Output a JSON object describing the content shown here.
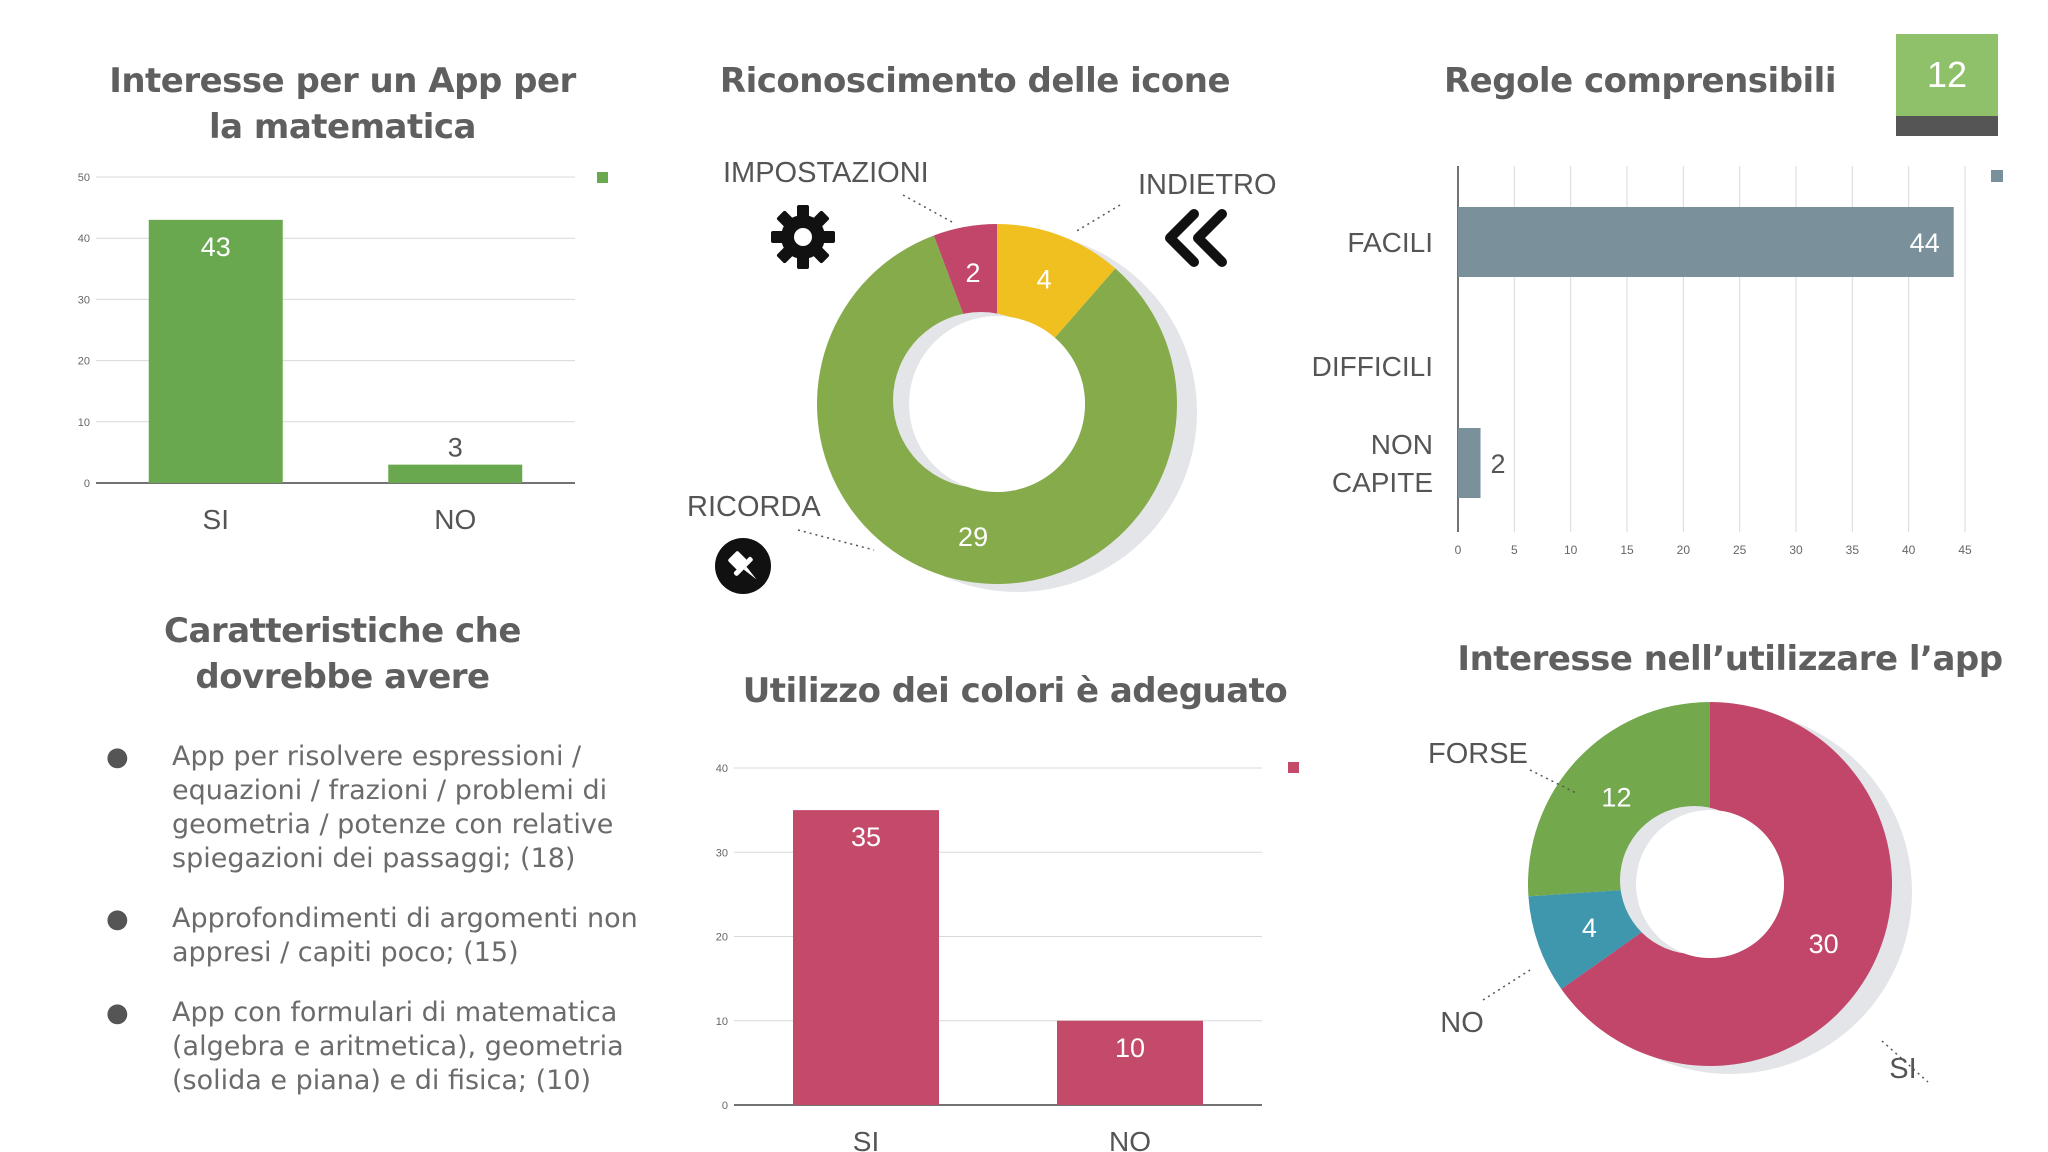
{
  "page_number": "12",
  "titles": {
    "chart1": "Interesse per un App per la matematica",
    "chart2": "Riconoscimento delle icone",
    "chart3": "Regole comprensibili",
    "features": "Caratteristiche che dovrebbe avere",
    "chart5": "Utilizzo dei colori è adeguato",
    "chart6": "Interesse nell’utilizzare l’app"
  },
  "features": [
    "App per risolvere espressioni / equazioni / frazioni / problemi di geometria / potenze  con relative spiegazioni dei passaggi; (18)",
    "Approfondimenti di argomenti non appresi / capiti poco; (15)",
    "App con formulari di matematica (algebra e aritmetica), geometria (solida e piana) e di fisica; (10)"
  ],
  "icons": {
    "settings": "gear-icon",
    "back": "double-chevron-left-icon",
    "pin": "pin-icon"
  },
  "chart_data": [
    {
      "type": "bar",
      "title": "Interesse per un App per la matematica",
      "categories": [
        "SI",
        "NO"
      ],
      "values": [
        43,
        3
      ],
      "ylim": [
        0,
        50
      ],
      "yticks": [
        0,
        10,
        20,
        30,
        40,
        50
      ],
      "color": "#6aa84f",
      "grid": true,
      "legend": "top-right"
    },
    {
      "type": "pie",
      "title": "Riconoscimento delle icone",
      "labels": [
        "IMPOSTAZIONI",
        "INDIETRO",
        "RICORDA"
      ],
      "values": [
        2,
        4,
        29
      ],
      "colors": [
        "#c2466a",
        "#f0c020",
        "#86ab4b"
      ],
      "donut": true
    },
    {
      "type": "bar",
      "orientation": "horizontal",
      "title": "Regole comprensibili",
      "categories": [
        "FACILI",
        "DIFFICILI",
        "NON CAPITE"
      ],
      "values": [
        44,
        0,
        2
      ],
      "xlim": [
        0,
        45
      ],
      "xticks": [
        0,
        5,
        10,
        15,
        20,
        25,
        30,
        35,
        40,
        45
      ],
      "color": "#7a909b",
      "grid": true,
      "legend": "top-right"
    },
    {
      "type": "bar",
      "title": "Utilizzo dei colori è adeguato",
      "categories": [
        "SI",
        "NO"
      ],
      "values": [
        35,
        10
      ],
      "ylim": [
        0,
        40
      ],
      "yticks": [
        0,
        10,
        20,
        30,
        40
      ],
      "color": "#c44a6a",
      "grid": true,
      "legend": "top-right"
    },
    {
      "type": "pie",
      "title": "Interesse nell’utilizzare l’app",
      "labels": [
        "SI",
        "NO",
        "FORSE"
      ],
      "values": [
        30,
        4,
        12
      ],
      "colors": [
        "#c2466a",
        "#3f97ad",
        "#73a84d"
      ],
      "donut": true
    }
  ]
}
